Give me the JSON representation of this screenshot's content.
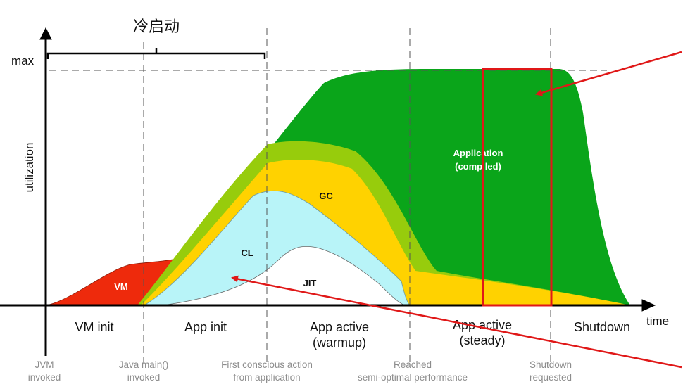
{
  "title": "冷启动",
  "axis": {
    "x_label": "time",
    "y_label": "utilization",
    "y_max_label": "max"
  },
  "regions": {
    "vm": "VM",
    "cl": "CL",
    "jit": "JIT",
    "gc": "GC",
    "application_line1": "Application",
    "application_line2": "(compiled)"
  },
  "phases": [
    {
      "line1": "VM init",
      "line2": ""
    },
    {
      "line1": "App init",
      "line2": ""
    },
    {
      "line1": "App active",
      "line2": "(warmup)"
    },
    {
      "line1": "App active",
      "line2": "(steady)"
    },
    {
      "line1": "Shutdown",
      "line2": ""
    }
  ],
  "events": [
    {
      "line1": "JVM",
      "line2": "invoked"
    },
    {
      "line1": "Java main()",
      "line2": "invoked"
    },
    {
      "line1": "First conscious action",
      "line2": "from application"
    },
    {
      "line1": "Reached",
      "line2": "semi-optimal performance"
    },
    {
      "line1": "Shutdown",
      "line2": "requested"
    }
  ],
  "colors": {
    "vm": "#ee2a0c",
    "application": "#0aa51a",
    "lime": "#97cc0c",
    "gc": "#ffd200",
    "cl": "#b8f4f8",
    "jit": "#ffffff",
    "highlight": "#e01818"
  }
}
